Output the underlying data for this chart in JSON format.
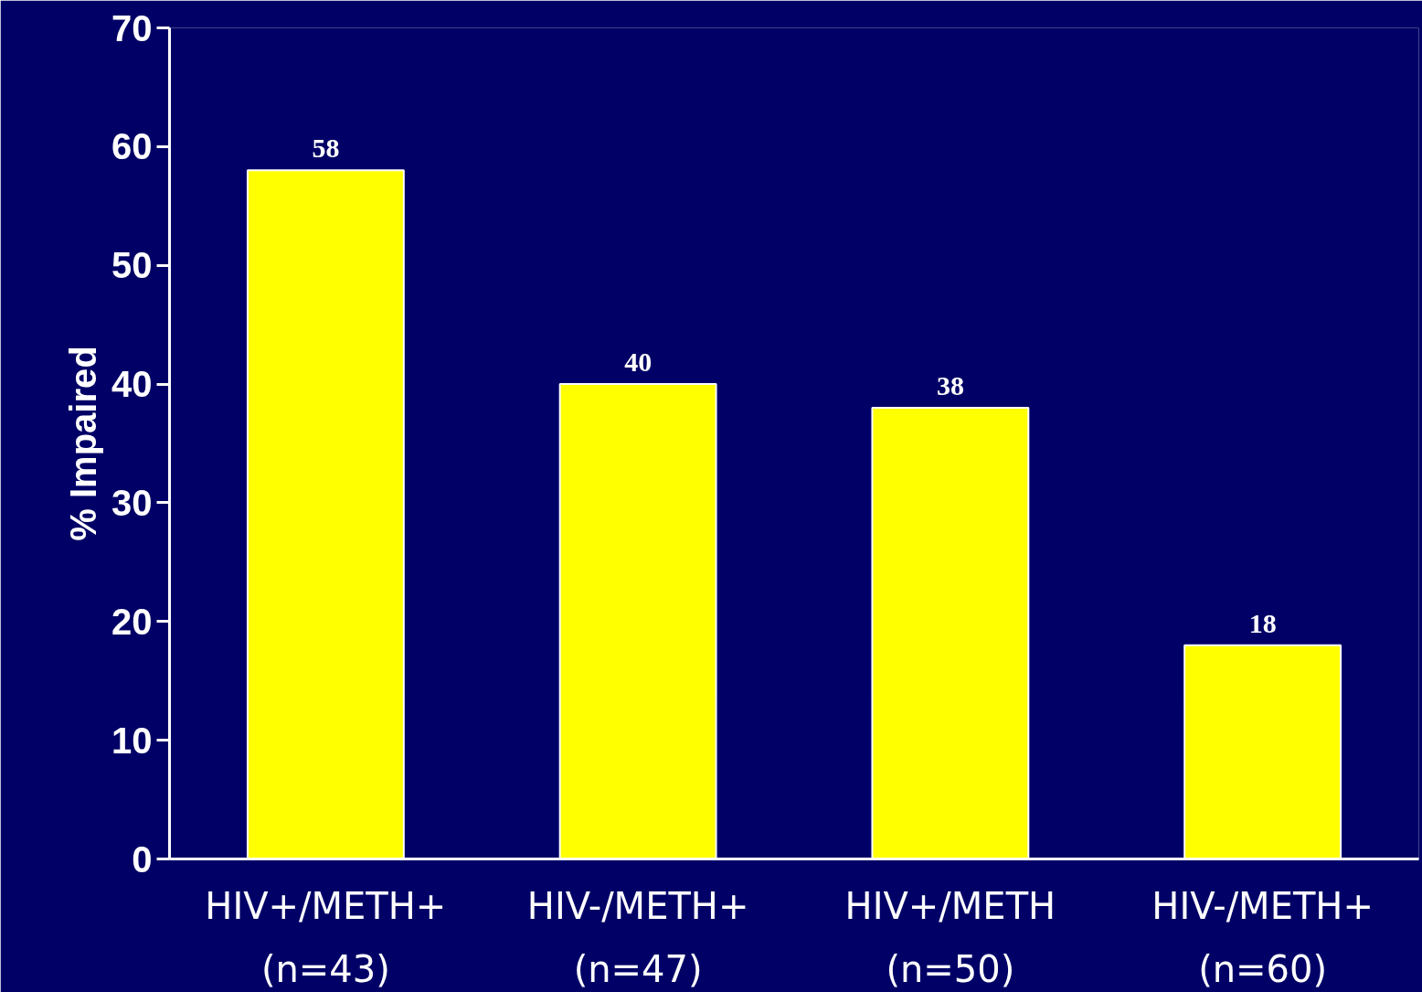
{
  "chart_data": {
    "type": "bar",
    "ylabel": "% Impaired",
    "categories": [
      "HIV+/METH+\n(n=43)",
      "HIV-/METH+\n(n=47)",
      "HIV+/METH\n(n=50)",
      "HIV-/METH+\n(n=60)"
    ],
    "values": [
      58,
      40,
      38,
      18
    ],
    "color": "#ffff00",
    "ylim": [
      0,
      70
    ],
    "yticks": [
      0,
      10,
      20,
      30,
      40,
      50,
      60,
      70
    ],
    "grid": false,
    "data_labels": true
  }
}
